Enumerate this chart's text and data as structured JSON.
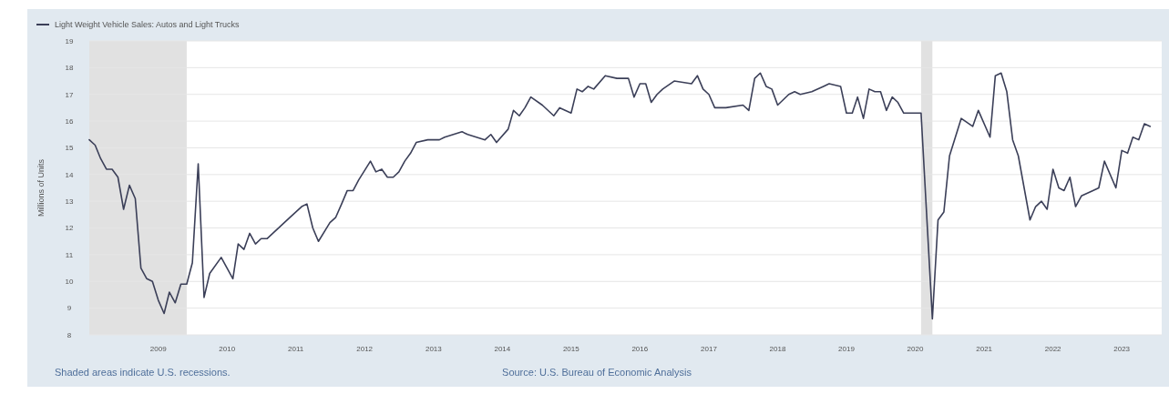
{
  "chart_data": {
    "type": "line",
    "ylabel": "Millions of Units",
    "legend": "top left",
    "grid": "y",
    "line_style": "solid",
    "marker": "none",
    "xlim": [
      "2008-01",
      "2023-08"
    ],
    "ylim": [
      8,
      19
    ],
    "xticks": [
      "2009",
      "2010",
      "2011",
      "2012",
      "2013",
      "2014",
      "2015",
      "2016",
      "2017",
      "2018",
      "2019",
      "2020",
      "2021",
      "2022",
      "2023"
    ],
    "yticks": [
      8,
      9,
      10,
      11,
      12,
      13,
      14,
      15,
      16,
      17,
      18,
      19
    ],
    "bands": [
      {
        "axis": "x",
        "from": "2008-01",
        "to": "2009-06",
        "color": "#e1e1e1"
      },
      {
        "axis": "x",
        "from": "2020-02",
        "to": "2020-04",
        "color": "#e1e1e1"
      }
    ],
    "annotations": [
      "Shaded areas indicate U.S. recessions.",
      "Source: U.S. Bureau of Economic Analysis"
    ],
    "series": [
      {
        "name": "Light Weight Vehicle Sales: Autos and Light Trucks",
        "color": "#3b3f58",
        "x": [
          "2008-01",
          "2008-02",
          "2008-03",
          "2008-04",
          "2008-05",
          "2008-06",
          "2008-07",
          "2008-08",
          "2008-09",
          "2008-10",
          "2008-11",
          "2008-12",
          "2009-01",
          "2009-02",
          "2009-03",
          "2009-04",
          "2009-05",
          "2009-06",
          "2009-07",
          "2009-08",
          "2009-09",
          "2009-10",
          "2009-12",
          "2010-01",
          "2010-02",
          "2010-03",
          "2010-04",
          "2010-05",
          "2010-06",
          "2010-07",
          "2010-08",
          "2010-09",
          "2010-10",
          "2010-11",
          "2010-12",
          "2011-02",
          "2011-03",
          "2011-04",
          "2011-05",
          "2011-07",
          "2011-08",
          "2011-09",
          "2011-10",
          "2011-11",
          "2011-12",
          "2012-02",
          "2012-03",
          "2012-04",
          "2012-05",
          "2012-06",
          "2012-07",
          "2012-08",
          "2012-09",
          "2012-10",
          "2012-12",
          "2013-02",
          "2013-03",
          "2013-06",
          "2013-07",
          "2013-10",
          "2013-11",
          "2013-12",
          "2014-02",
          "2014-03",
          "2014-04",
          "2014-05",
          "2014-06",
          "2014-08",
          "2014-10",
          "2014-11",
          "2015-01",
          "2015-02",
          "2015-03",
          "2015-04",
          "2015-05",
          "2015-07",
          "2015-09",
          "2015-11",
          "2015-12",
          "2016-01",
          "2016-02",
          "2016-03",
          "2016-04",
          "2016-05",
          "2016-07",
          "2016-10",
          "2016-11",
          "2016-12",
          "2017-01",
          "2017-02",
          "2017-04",
          "2017-07",
          "2017-08",
          "2017-09",
          "2017-10",
          "2017-11",
          "2017-12",
          "2018-01",
          "2018-03",
          "2018-04",
          "2018-05",
          "2018-07",
          "2018-09",
          "2018-10",
          "2018-12",
          "2019-01",
          "2019-02",
          "2019-03",
          "2019-04",
          "2019-05",
          "2019-06",
          "2019-07",
          "2019-08",
          "2019-09",
          "2019-10",
          "2019-11",
          "2020-02",
          "2020-04",
          "2020-05",
          "2020-06",
          "2020-07",
          "2020-09",
          "2020-11",
          "2020-12",
          "2021-02",
          "2021-03",
          "2021-04",
          "2021-05",
          "2021-06",
          "2021-07",
          "2021-09",
          "2021-10",
          "2021-11",
          "2021-12",
          "2022-01",
          "2022-02",
          "2022-03",
          "2022-04",
          "2022-05",
          "2022-06",
          "2022-08",
          "2022-09",
          "2022-10",
          "2022-12",
          "2023-01",
          "2023-02",
          "2023-03",
          "2023-04",
          "2023-05",
          "2023-06"
        ],
        "values": [
          15.3,
          15.1,
          14.6,
          14.2,
          14.2,
          13.9,
          12.7,
          13.6,
          13.1,
          10.5,
          10.1,
          10.0,
          9.3,
          8.8,
          9.6,
          9.2,
          9.9,
          9.9,
          10.7,
          14.4,
          9.4,
          10.3,
          10.9,
          10.5,
          10.1,
          11.4,
          11.2,
          11.8,
          11.4,
          11.6,
          11.6,
          11.8,
          12.0,
          12.2,
          12.4,
          12.8,
          12.9,
          12.0,
          11.5,
          12.2,
          12.4,
          12.9,
          13.4,
          13.4,
          13.8,
          14.5,
          14.1,
          14.2,
          13.9,
          13.9,
          14.1,
          14.5,
          14.8,
          15.2,
          15.3,
          15.3,
          15.4,
          15.6,
          15.5,
          15.3,
          15.5,
          15.2,
          15.7,
          16.4,
          16.2,
          16.5,
          16.9,
          16.6,
          16.2,
          16.5,
          16.3,
          17.2,
          17.1,
          17.3,
          17.2,
          17.7,
          17.6,
          17.6,
          16.9,
          17.4,
          17.4,
          16.7,
          17.0,
          17.2,
          17.5,
          17.4,
          17.7,
          17.2,
          17.0,
          16.5,
          16.5,
          16.6,
          16.4,
          17.6,
          17.8,
          17.3,
          17.2,
          16.6,
          17.0,
          17.1,
          17.0,
          17.1,
          17.3,
          17.4,
          17.3,
          16.3,
          16.3,
          16.9,
          16.1,
          17.2,
          17.1,
          17.1,
          16.4,
          16.9,
          16.7,
          16.3,
          16.3,
          8.6,
          12.3,
          12.6,
          14.7,
          16.1,
          15.8,
          16.4,
          15.4,
          17.7,
          17.8,
          17.1,
          15.3,
          14.7,
          12.3,
          12.8,
          13.0,
          12.7,
          14.2,
          13.5,
          13.4,
          13.9,
          12.8,
          13.2,
          13.4,
          13.5,
          14.5,
          13.5,
          14.9,
          14.8,
          15.4,
          15.3,
          15.9,
          15.8
        ]
      }
    ]
  }
}
